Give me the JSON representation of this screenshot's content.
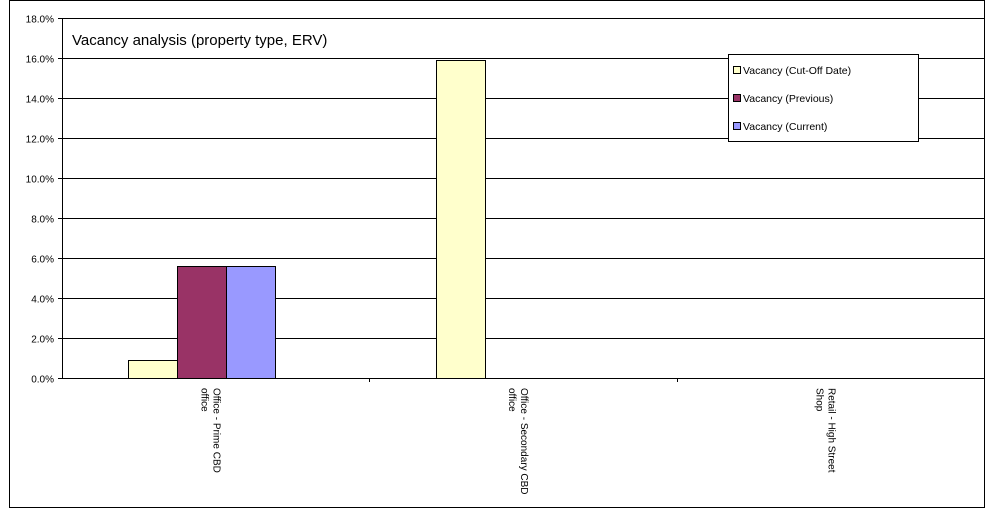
{
  "chart_data": {
    "type": "bar",
    "title": "Vacancy analysis (property type, ERV)",
    "xlabel": "",
    "ylabel": "",
    "categories": [
      [
        "Office - Prime CBD",
        "office"
      ],
      [
        "Office - Secondary CBD",
        "office"
      ],
      [
        "Retail - High Street",
        "Shop"
      ]
    ],
    "series": [
      {
        "name": "Vacancy (Cut-Off Date)",
        "values": [
          0.9,
          15.9,
          0
        ],
        "color": "#ffffcc"
      },
      {
        "name": "Vacancy (Previous)",
        "values": [
          5.6,
          0,
          0
        ],
        "color": "#993366"
      },
      {
        "name": "Vacancy (Current)",
        "values": [
          5.6,
          0,
          0
        ],
        "color": "#9999ff"
      }
    ],
    "ylim": [
      0,
      18
    ],
    "y_ticks": [
      "0.0%",
      "2.0%",
      "4.0%",
      "6.0%",
      "8.0%",
      "10.0%",
      "12.0%",
      "14.0%",
      "16.0%",
      "18.0%"
    ],
    "grid": true,
    "legend_position": "top-right"
  }
}
